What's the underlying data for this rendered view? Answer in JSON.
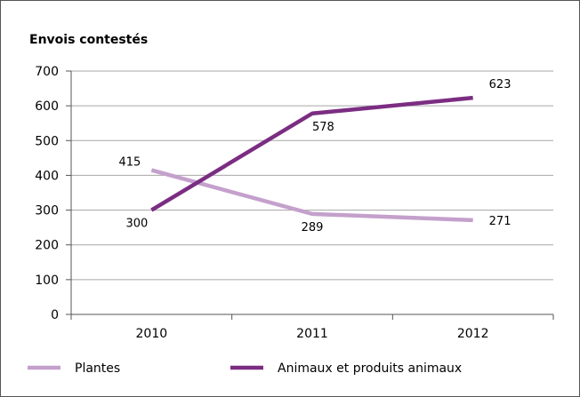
{
  "chart_data": {
    "type": "line",
    "title": "Envois contestés",
    "xlabel": "",
    "ylabel": "",
    "categories": [
      "2010",
      "2011",
      "2012"
    ],
    "ylim": [
      0,
      700
    ],
    "yticks": [
      0,
      100,
      200,
      300,
      400,
      500,
      600,
      700
    ],
    "grid": true,
    "legend_position": "bottom",
    "series": [
      {
        "name": "Plantes",
        "values": [
          415,
          289,
          271
        ],
        "color": "#c4a0cc",
        "labels": [
          "415",
          "289",
          "271"
        ]
      },
      {
        "name": "Animaux et produits animaux",
        "values": [
          300,
          578,
          623
        ],
        "color": "#7b2d82",
        "labels": [
          "300",
          "578",
          "623"
        ]
      }
    ]
  }
}
